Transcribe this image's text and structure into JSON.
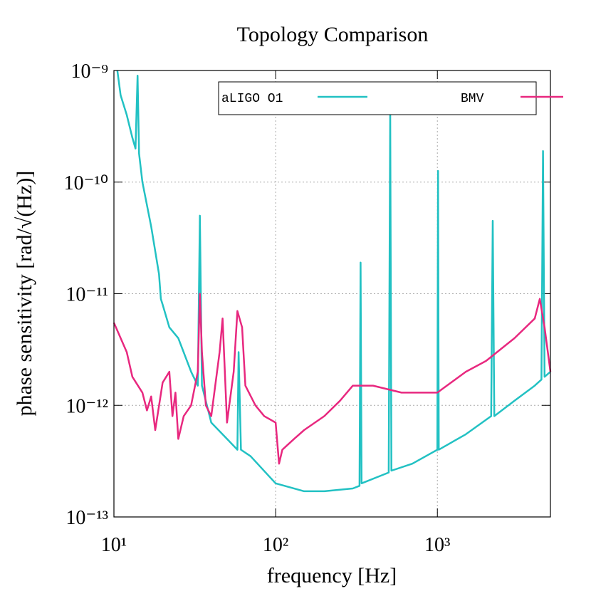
{
  "chart_data": {
    "type": "line",
    "title": "Topology Comparison",
    "x_label": "frequency [Hz]",
    "y_label": "phase sensitivity [rad/√(Hz)]",
    "xscale": "log",
    "yscale": "log",
    "grid": true,
    "legend": "top right",
    "xlim": [
      10,
      5000
    ],
    "ylim": [
      1e-13,
      1e-09
    ],
    "xticks": [
      {
        "value": 10,
        "label": "10¹"
      },
      {
        "value": 100,
        "label": "10²"
      },
      {
        "value": 1000,
        "label": "10³"
      }
    ],
    "yticks": [
      {
        "value": 1e-13,
        "label": "10⁻¹³"
      },
      {
        "value": 1e-12,
        "label": "10⁻¹²"
      },
      {
        "value": 1e-11,
        "label": "10⁻¹¹"
      },
      {
        "value": 1e-10,
        "label": "10⁻¹⁰"
      },
      {
        "value": 1e-09,
        "label": "10⁻⁹"
      }
    ],
    "series": [
      {
        "name": "aLIGO O1",
        "color": "#22c1c3",
        "x": [
          10.5,
          11,
          12,
          13,
          13.6,
          14,
          14.3,
          15,
          17,
          19,
          19.5,
          20,
          22,
          25,
          30,
          33,
          34,
          35,
          40,
          50,
          58,
          59,
          61,
          70,
          100,
          150,
          200,
          300,
          330,
          335,
          340,
          500,
          511,
          520,
          700,
          1000,
          1010,
          1020,
          1500,
          2150,
          2200,
          2250,
          3000,
          4000,
          4400,
          4500,
          4600,
          5000
        ],
        "values": [
          1e-09,
          6e-10,
          4e-10,
          2.5e-10,
          2e-10,
          9e-10,
          1.8e-10,
          1e-10,
          4e-11,
          1.5e-11,
          9e-12,
          8e-12,
          5e-12,
          4e-12,
          2e-12,
          1.5e-12,
          5e-11,
          1.5e-12,
          7e-13,
          5e-13,
          4e-13,
          3e-12,
          4e-13,
          3.5e-13,
          2e-13,
          1.7e-13,
          1.7e-13,
          1.8e-13,
          1.9e-13,
          1.9e-11,
          2e-13,
          2.5e-13,
          4.4e-10,
          2.6e-13,
          3e-13,
          4e-13,
          1.26e-10,
          4e-13,
          5.5e-13,
          8e-13,
          4.5e-11,
          8e-13,
          1.1e-12,
          1.5e-12,
          1.7e-12,
          1.9e-10,
          1.8e-12,
          2e-12
        ]
      },
      {
        "name": "BMV",
        "color": "#e8287f",
        "x": [
          10,
          12,
          13,
          15,
          16,
          17,
          18,
          20,
          22,
          23,
          24,
          25,
          27,
          30,
          33,
          34,
          35,
          37,
          40,
          45,
          47,
          50,
          55,
          58,
          62,
          65,
          75,
          85,
          100,
          105,
          110,
          130,
          150,
          200,
          250,
          300,
          400,
          600,
          1000,
          1500,
          2000,
          3000,
          4000,
          4300,
          4600,
          5000
        ],
        "values": [
          5.5e-12,
          3e-12,
          1.8e-12,
          1.3e-12,
          9e-13,
          1.2e-12,
          6e-13,
          1.6e-12,
          2e-12,
          8e-13,
          1.3e-12,
          5e-13,
          8e-13,
          1e-12,
          2e-12,
          1e-11,
          3e-12,
          1e-12,
          8e-13,
          3e-12,
          6e-12,
          7e-13,
          2e-12,
          7e-12,
          5e-12,
          1.5e-12,
          1e-12,
          8e-13,
          7e-13,
          3e-13,
          4e-13,
          5e-13,
          6e-13,
          8e-13,
          1.1e-12,
          1.5e-12,
          1.5e-12,
          1.3e-12,
          1.3e-12,
          2e-12,
          2.5e-12,
          4e-12,
          6e-12,
          9e-12,
          5e-12,
          2e-12
        ]
      }
    ]
  }
}
